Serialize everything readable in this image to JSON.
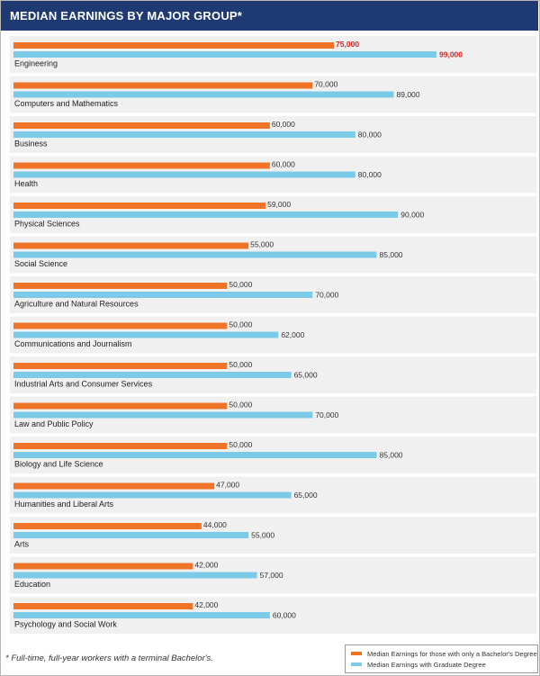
{
  "header": {
    "title": "MEDIAN EARNINGS BY MAJOR GROUP*"
  },
  "footnote": "* Full-time, full-year workers with a terminal Bachelor's.",
  "colors": {
    "bachelor": "#f07427",
    "graduate": "#7bcbe8",
    "header_bg": "#1f3a73",
    "row_bg": "#f0f0f0",
    "highlight": "#e02020"
  },
  "chart_data": {
    "type": "bar",
    "orientation": "horizontal",
    "title": "MEDIAN EARNINGS BY MAJOR GROUP*",
    "categories": [
      "Engineering",
      "Computers and Mathematics",
      "Business",
      "Health",
      "Physical Sciences",
      "Social Science",
      "Agriculture and Natural Resources",
      "Communications and Journalism",
      "Industrial Arts and Consumer Services",
      "Law and Public Policy",
      "Biology and Life Science",
      "Humanities and Liberal Arts",
      "Arts",
      "Education",
      "Psychology and Social Work"
    ],
    "series": [
      {
        "name": "Median Earnings for those with only a Bachelor's Degree",
        "values": [
          75000,
          70000,
          60000,
          60000,
          59000,
          55000,
          50000,
          50000,
          50000,
          50000,
          50000,
          47000,
          44000,
          42000,
          42000
        ]
      },
      {
        "name": "Median Earnings with Graduate Degree",
        "values": [
          99000,
          89000,
          80000,
          80000,
          90000,
          85000,
          70000,
          62000,
          65000,
          70000,
          85000,
          65000,
          55000,
          57000,
          60000
        ]
      }
    ],
    "labels": {
      "bachelor": [
        "75,000",
        "70,000",
        "60,000",
        "60,000",
        "59,000",
        "55,000",
        "50,000",
        "50,000",
        "50,000",
        "50,000",
        "50,000",
        "47,000",
        "44,000",
        "42,000",
        "42,000"
      ],
      "graduate": [
        "99,000",
        "89,000",
        "80,000",
        "80,000",
        "90,000",
        "85,000",
        "70,000",
        "62,000",
        "65,000",
        "70,000",
        "85,000",
        "65,000",
        "55,000",
        "57,000",
        "60,000"
      ]
    },
    "highlighted_category": "Engineering",
    "xlim": [
      0,
      99000
    ],
    "grid": false,
    "legend_position": "bottom-right"
  }
}
